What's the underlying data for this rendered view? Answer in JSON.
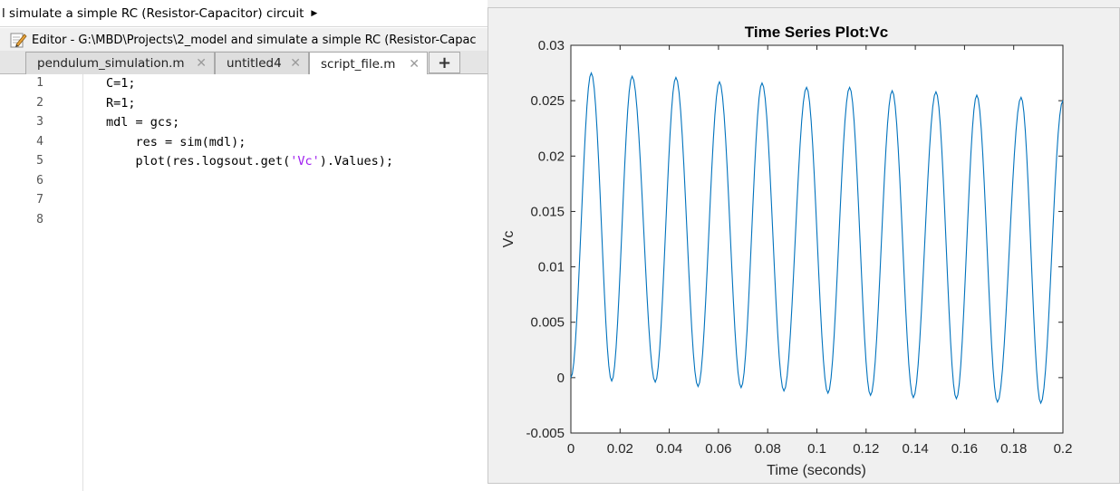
{
  "breadcrumb": {
    "text": "l simulate a simple RC (Resistor-Capacitor) circuit"
  },
  "editor": {
    "title": "Editor - G:\\MBD\\Projects\\2_model and simulate a simple RC (Resistor-Capac",
    "tabs": [
      {
        "label": "pendulum_simulation.m",
        "active": false
      },
      {
        "label": "untitled4",
        "active": false
      },
      {
        "label": "script_file.m",
        "active": true
      }
    ],
    "add_tab_label": "+",
    "close_glyph": "✕",
    "line_numbers": [
      "1",
      "2",
      "3",
      "4",
      "5",
      "6",
      "7",
      "8"
    ],
    "code_lines": [
      "C=1;",
      "R=1;",
      "mdl = gcs;",
      "    res = sim(mdl);",
      "    plot(res.logsout.get('Vc').Values);"
    ]
  },
  "colors": {
    "line": "#0072bd",
    "string": "#a020f0",
    "figure_bg": "#f0f0f0"
  },
  "icons": {
    "editor": "pencil-edit-icon",
    "breadcrumb_arrow": "triangle-right-icon"
  },
  "chart_data": {
    "type": "line",
    "title": "Time Series Plot:Vc",
    "xlabel": "Time (seconds)",
    "ylabel": "Vc",
    "xlim": [
      0,
      0.2
    ],
    "ylim": [
      -0.005,
      0.03
    ],
    "xticks": [
      0,
      0.02,
      0.04,
      0.06,
      0.08,
      0.1,
      0.12,
      0.14,
      0.16,
      0.18,
      0.2
    ],
    "xtick_labels": [
      "0",
      "0.02",
      "0.04",
      "0.06",
      "0.08",
      "0.1",
      "0.12",
      "0.14",
      "0.16",
      "0.18",
      "0.2"
    ],
    "yticks": [
      -0.005,
      0,
      0.005,
      0.01,
      0.015,
      0.02,
      0.025,
      0.03
    ],
    "ytick_labels": [
      "-0.005",
      "0",
      "0.005",
      "0.01",
      "0.015",
      "0.02",
      "0.025",
      "0.03"
    ],
    "grid": false,
    "series": [
      {
        "x": [
          0,
          0.0083,
          0.0166,
          0.0249,
          0.0343,
          0.0427,
          0.0517,
          0.0604,
          0.0692,
          0.0777,
          0.0866,
          0.0958,
          0.1045,
          0.1133,
          0.1218,
          0.1306,
          0.1392,
          0.1484,
          0.1567,
          0.165,
          0.1734,
          0.183,
          0.191,
          0.2
        ],
        "y": [
          0,
          0.0275,
          -0.0003,
          0.0272,
          -0.0004,
          0.0271,
          -0.0008,
          0.0267,
          -0.0009,
          0.0266,
          -0.0012,
          0.0262,
          -0.0014,
          0.0262,
          -0.0016,
          0.0259,
          -0.0018,
          0.0258,
          -0.0019,
          0.0255,
          -0.0022,
          0.0253,
          -0.0023,
          0.025
        ]
      }
    ]
  }
}
